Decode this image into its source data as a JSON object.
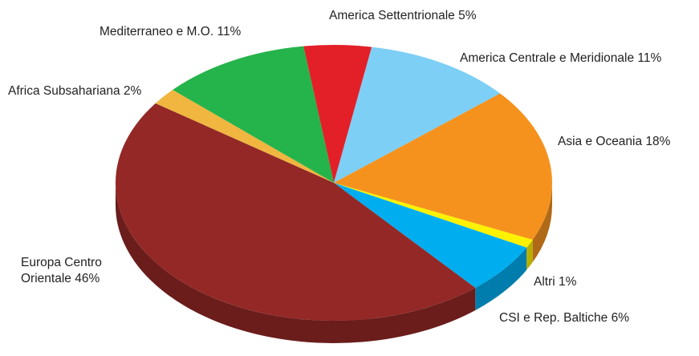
{
  "chart_data": {
    "type": "pie",
    "categories": [
      "America Settentrionale",
      "America Centrale e Meridionale",
      "Asia e Oceania",
      "Altri",
      "CSI e Rep. Baltiche",
      "Europa Centro Orientale",
      "Africa Subsahariana",
      "Mediterraneo e M.O."
    ],
    "values": [
      5,
      11,
      18,
      1,
      6,
      46,
      2,
      11
    ],
    "value_labels": [
      "5%",
      "11%",
      "18%",
      "1%",
      "6%",
      "46%",
      "2%",
      "11%"
    ],
    "colors": [
      "#e32028",
      "#7dcff5",
      "#f5921e",
      "#fff200",
      "#00aeef",
      "#932826",
      "#f0b640",
      "#25b34b"
    ]
  }
}
